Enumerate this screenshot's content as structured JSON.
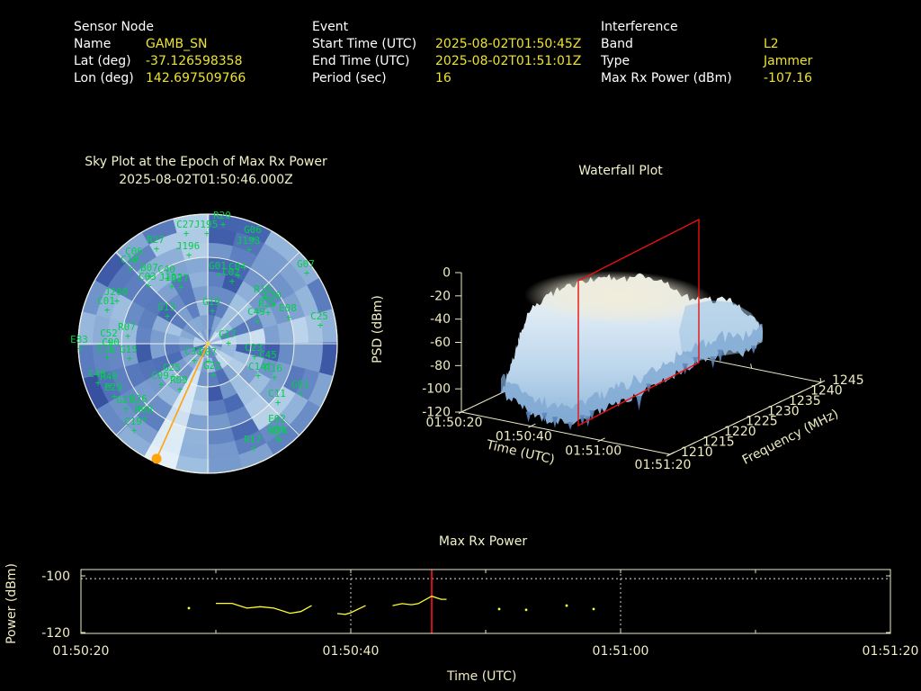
{
  "colors": {
    "background": "#000000",
    "header_label": "#ffffff",
    "header_value": "#ece32f",
    "title_text": "#f2f2c9",
    "axis_text": "#f0edc2",
    "axis_line": "#ede9c4",
    "grid_white": "#f5f5e8",
    "satellite_green": "#00d148",
    "series_yellow": "#ffff2e",
    "event_red": "#ea1010",
    "jammer_orange": "#ffa408",
    "heat_dark": "#253585",
    "heat_light": "#e6f1f9",
    "surface_cream": "#f2edda",
    "surface_blue": "#8fb6da"
  },
  "header": {
    "sensor": {
      "title": "Sensor Node",
      "rows": [
        [
          "Name",
          "GAMB_SN"
        ],
        [
          "Lat (deg)",
          "-37.126598358"
        ],
        [
          "Lon (deg)",
          "142.697509766"
        ]
      ]
    },
    "event": {
      "title": "Event",
      "rows": [
        [
          "Start Time (UTC)",
          "2025-08-02T01:50:45Z"
        ],
        [
          "End Time (UTC)",
          "2025-08-02T01:51:01Z"
        ],
        [
          "Period (sec)",
          "16"
        ]
      ]
    },
    "interference": {
      "title": "Interference",
      "rows": [
        [
          "Band",
          "L2"
        ],
        [
          "Type",
          "Jammer"
        ],
        [
          "Max Rx Power (dBm)",
          "-107.16"
        ]
      ]
    }
  },
  "skyplot": {
    "title": "Sky Plot at the Epoch of Max Rx Power",
    "subtitle": "2025-08-02T01:50:46.000Z"
  },
  "waterfall": {
    "title": "Waterfall Plot",
    "ylabel": "PSD (dBm)",
    "xlabel": "Time (UTC)",
    "zlabel": "Frequency (MHz)"
  },
  "maxrx": {
    "title": "Max Rx Power",
    "ylabel": "Power (dBm)",
    "xlabel": "Time (UTC)"
  },
  "chart_data": [
    {
      "id": "skyplot",
      "type": "polar_heatmap",
      "title": "Sky Plot at the Epoch of Max Rx Power",
      "subtitle": "2025-08-02T01:50:46.000Z",
      "elevation_rings_deg": [
        0,
        30,
        60
      ],
      "azimuth_spoke_step_deg": 45,
      "jammer": {
        "bearing_deg": 204,
        "line_color": "#ffa408",
        "horizon_marker": true
      },
      "satellites": [
        [
          "R20",
          247,
          239
        ],
        [
          "C27",
          206,
          249
        ],
        [
          "J195",
          229,
          249
        ],
        [
          "G06",
          281,
          255
        ],
        [
          "J193",
          276,
          267
        ],
        [
          "R27",
          173,
          266
        ],
        [
          "J196",
          209,
          273
        ],
        [
          "C06",
          149,
          279
        ],
        [
          "C10",
          144,
          288
        ],
        [
          "G07",
          340,
          293
        ],
        [
          "B07",
          166,
          297
        ],
        [
          "C40",
          185,
          299
        ],
        [
          "G01",
          242,
          295
        ],
        [
          "C04",
          264,
          296
        ],
        [
          "C02",
          257,
          302
        ],
        [
          "C03",
          164,
          307
        ],
        [
          "J192",
          190,
          308
        ],
        [
          "E27",
          200,
          309
        ],
        [
          "J200",
          129,
          324
        ],
        [
          "C01",
          118,
          334
        ],
        [
          "R19",
          292,
          321
        ],
        [
          "G30",
          303,
          328
        ],
        [
          "R25",
          297,
          337
        ],
        [
          "G19",
          235,
          335
        ],
        [
          "G13",
          185,
          341
        ],
        [
          "C49",
          285,
          346
        ],
        [
          "E08",
          320,
          342
        ],
        [
          "C25",
          355,
          351
        ],
        [
          "R07",
          141,
          363
        ],
        [
          "C52",
          121,
          370
        ],
        [
          "E83",
          88,
          377
        ],
        [
          "C90",
          123,
          380
        ],
        [
          "G17",
          253,
          371
        ],
        [
          "E16",
          118,
          387
        ],
        [
          "G15",
          143,
          388
        ],
        [
          "C23",
          282,
          386
        ],
        [
          "C32",
          215,
          390
        ],
        [
          "C07",
          231,
          391
        ],
        [
          "C45",
          298,
          394
        ],
        [
          "G22",
          236,
          406
        ],
        [
          "G25",
          191,
          408
        ],
        [
          "C14",
          286,
          407
        ],
        [
          "R16",
          304,
          409
        ],
        [
          "C48",
          108,
          415
        ],
        [
          "R40",
          121,
          418
        ],
        [
          "C09",
          178,
          417
        ],
        [
          "R09",
          199,
          422
        ],
        [
          "G01",
          334,
          427
        ],
        [
          "E29",
          126,
          430
        ],
        [
          "C11",
          308,
          437
        ],
        [
          "G21",
          139,
          444
        ],
        [
          "R26",
          154,
          443
        ],
        [
          "R08",
          160,
          455
        ],
        [
          "C19",
          148,
          468
        ],
        [
          "E02",
          308,
          465
        ],
        [
          "G04",
          307,
          477
        ],
        [
          "G24",
          310,
          479
        ],
        [
          "R17",
          281,
          488
        ]
      ]
    },
    {
      "id": "waterfall",
      "type": "surface",
      "title": "Waterfall Plot",
      "zlabel": "PSD (dBm)",
      "xlabel": "Time (UTC)",
      "ylabel": "Frequency (MHz)",
      "psd_ticks": [
        0,
        -20,
        -40,
        -60,
        -80,
        -100,
        -120
      ],
      "time_ticks": [
        "01:50:20",
        "01:50:40",
        "01:51:00",
        "01:51:20"
      ],
      "freq_ticks": [
        1210,
        1215,
        1220,
        1225,
        1230,
        1235,
        1240,
        1245
      ],
      "psd_range": [
        -120,
        0
      ],
      "freq_range_mhz": [
        1210,
        1245
      ],
      "slice_time_utc": "01:50:46",
      "slice_color": "#ea1010",
      "description": "Broad elevated PSD plateau near -20 to -40 dBm across 1210-1245 MHz during the event, falling off before 01:50:30 and after 01:51:05"
    },
    {
      "id": "maxrx",
      "type": "line",
      "title": "Max Rx Power",
      "ylabel": "Power (dBm)",
      "xlabel": "Time (UTC)",
      "x_ticks": [
        "01:50:20",
        "01:50:40",
        "01:51:00",
        "01:51:20"
      ],
      "x_start_utc": "01:50:20",
      "x_span_sec": 60,
      "y_ticks": [
        -100,
        -120
      ],
      "y_range": [
        -120.3,
        -97.7
      ],
      "grid_x_sec": [
        20,
        40
      ],
      "threshold_dbm": -101,
      "epoch_marker_sec": 26,
      "epoch_marker_utc": "01:50:46",
      "segments": [
        [
          [
            8,
            -111.4
          ]
        ],
        [
          [
            10,
            -109.7
          ],
          [
            11.2,
            -109.7
          ],
          [
            12.3,
            -111.4
          ],
          [
            13.3,
            -110.9
          ],
          [
            14.3,
            -111.4
          ],
          [
            15.5,
            -113.2
          ],
          [
            16.3,
            -112.6
          ],
          [
            17.1,
            -110.5
          ]
        ],
        [
          [
            19,
            -113.3
          ],
          [
            19.6,
            -113.6
          ],
          [
            20,
            -113.0
          ],
          [
            21.1,
            -110.5
          ]
        ],
        [
          [
            23.1,
            -110.5
          ],
          [
            23.8,
            -109.8
          ],
          [
            24.5,
            -110.2
          ],
          [
            25.0,
            -109.8
          ],
          [
            26.0,
            -107.16
          ],
          [
            26.7,
            -108.3
          ],
          [
            27.1,
            -108.3
          ]
        ],
        [
          [
            31,
            -111.7
          ]
        ],
        [
          [
            33,
            -112.0
          ]
        ],
        [
          [
            36,
            -110.5
          ]
        ],
        [
          [
            38,
            -111.7
          ]
        ]
      ]
    }
  ]
}
